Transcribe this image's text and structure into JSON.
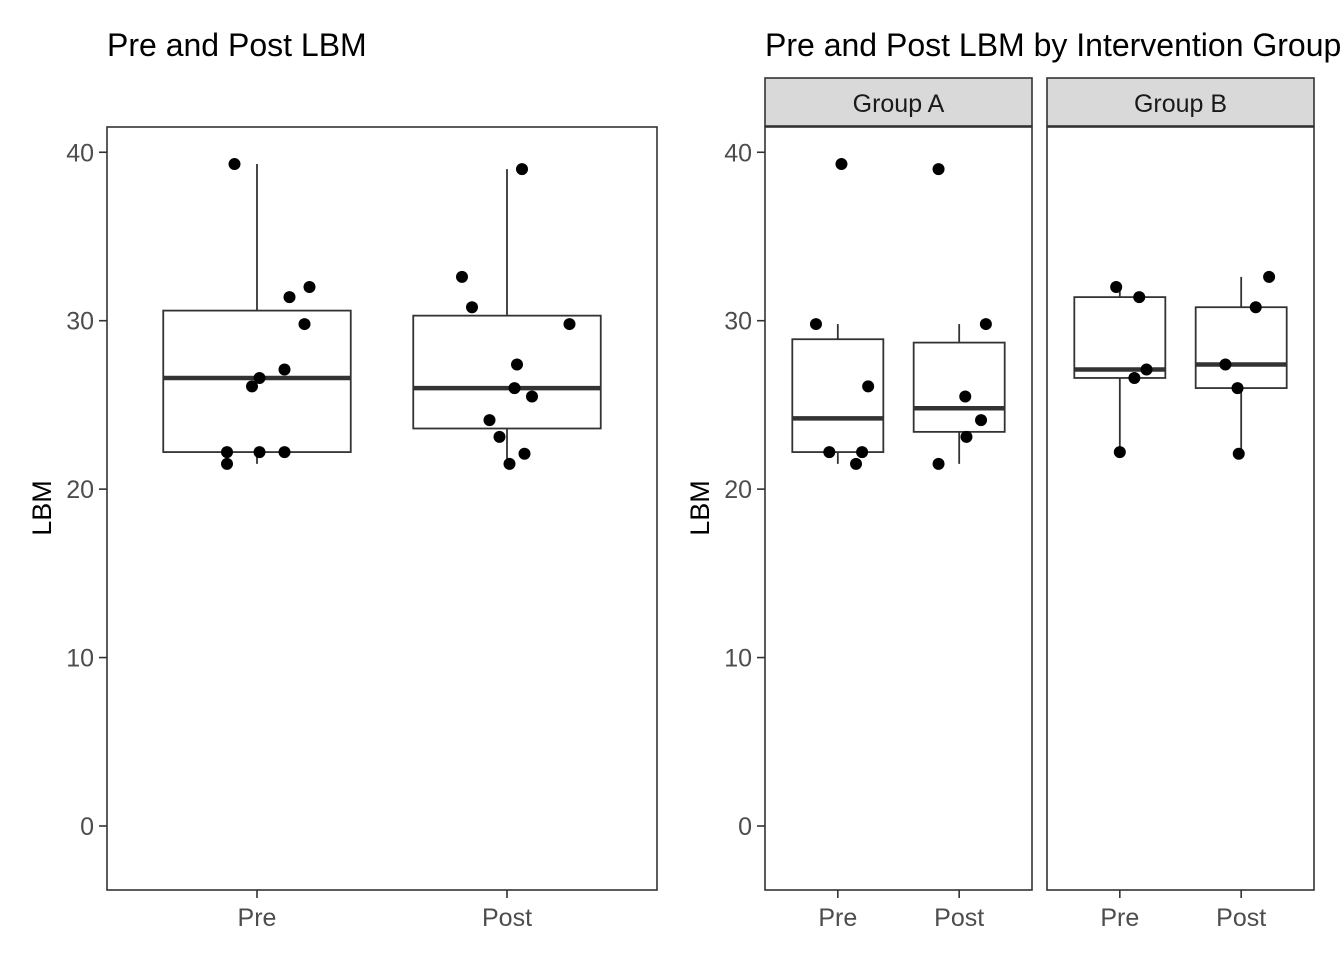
{
  "chart_data": [
    {
      "type": "boxplot",
      "title": "Pre and Post LBM",
      "xlabel": "",
      "ylabel": "LBM",
      "ylim": [
        -3.8,
        41.5
      ],
      "yticks": [
        0,
        10,
        20,
        30,
        40
      ],
      "categories": [
        "Pre",
        "Post"
      ],
      "boxes": [
        {
          "category": "Pre",
          "min": 21.5,
          "q1": 22.2,
          "median": 26.6,
          "q3": 30.6,
          "max": 39.3
        },
        {
          "category": "Post",
          "min": 21.5,
          "q1": 23.6,
          "median": 26.0,
          "q3": 30.3,
          "max": 39.0
        }
      ],
      "points": [
        {
          "category": "Pre",
          "jitter": -0.09,
          "value": 39.3
        },
        {
          "category": "Pre",
          "jitter": 0.21,
          "value": 32.0
        },
        {
          "category": "Pre",
          "jitter": 0.13,
          "value": 31.4
        },
        {
          "category": "Pre",
          "jitter": 0.19,
          "value": 29.8
        },
        {
          "category": "Pre",
          "jitter": 0.11,
          "value": 27.1
        },
        {
          "category": "Pre",
          "jitter": 0.01,
          "value": 26.6
        },
        {
          "category": "Pre",
          "jitter": -0.02,
          "value": 26.1
        },
        {
          "category": "Pre",
          "jitter": -0.12,
          "value": 22.2
        },
        {
          "category": "Pre",
          "jitter": 0.01,
          "value": 22.2
        },
        {
          "category": "Pre",
          "jitter": 0.11,
          "value": 22.2
        },
        {
          "category": "Pre",
          "jitter": -0.12,
          "value": 21.5
        },
        {
          "category": "Post",
          "jitter": 0.06,
          "value": 39.0
        },
        {
          "category": "Post",
          "jitter": -0.18,
          "value": 32.6
        },
        {
          "category": "Post",
          "jitter": -0.14,
          "value": 30.8
        },
        {
          "category": "Post",
          "jitter": 0.25,
          "value": 29.8
        },
        {
          "category": "Post",
          "jitter": 0.04,
          "value": 27.4
        },
        {
          "category": "Post",
          "jitter": 0.03,
          "value": 26.0
        },
        {
          "category": "Post",
          "jitter": 0.1,
          "value": 25.5
        },
        {
          "category": "Post",
          "jitter": -0.07,
          "value": 24.1
        },
        {
          "category": "Post",
          "jitter": -0.03,
          "value": 23.1
        },
        {
          "category": "Post",
          "jitter": 0.07,
          "value": 22.1
        },
        {
          "category": "Post",
          "jitter": 0.01,
          "value": 21.5
        }
      ]
    },
    {
      "type": "boxplot",
      "title": "Pre and Post LBM by Intervention Group",
      "xlabel": "",
      "ylabel": "LBM",
      "ylim": [
        -3.8,
        41.5
      ],
      "yticks": [
        0,
        10,
        20,
        30,
        40
      ],
      "categories": [
        "Pre",
        "Post"
      ],
      "facets": [
        {
          "label": "Group A",
          "boxes": [
            {
              "category": "Pre",
              "min": 21.5,
              "q1": 22.2,
              "median": 24.2,
              "q3": 28.9,
              "max": 29.8
            },
            {
              "category": "Post",
              "min": 21.5,
              "q1": 23.4,
              "median": 24.8,
              "q3": 28.7,
              "max": 29.8
            }
          ],
          "points": [
            {
              "category": "Pre",
              "jitter": 0.03,
              "value": 39.3
            },
            {
              "category": "Pre",
              "jitter": -0.18,
              "value": 29.8
            },
            {
              "category": "Pre",
              "jitter": 0.25,
              "value": 26.1
            },
            {
              "category": "Pre",
              "jitter": -0.07,
              "value": 22.2
            },
            {
              "category": "Pre",
              "jitter": 0.2,
              "value": 22.2
            },
            {
              "category": "Pre",
              "jitter": 0.15,
              "value": 21.5
            },
            {
              "category": "Post",
              "jitter": -0.17,
              "value": 39.0
            },
            {
              "category": "Post",
              "jitter": 0.22,
              "value": 29.8
            },
            {
              "category": "Post",
              "jitter": 0.05,
              "value": 25.5
            },
            {
              "category": "Post",
              "jitter": 0.18,
              "value": 24.1
            },
            {
              "category": "Post",
              "jitter": 0.06,
              "value": 23.1
            },
            {
              "category": "Post",
              "jitter": -0.17,
              "value": 21.5
            }
          ]
        },
        {
          "label": "Group B",
          "boxes": [
            {
              "category": "Pre",
              "min": 22.2,
              "q1": 26.6,
              "median": 27.1,
              "q3": 31.4,
              "max": 32.0
            },
            {
              "category": "Post",
              "min": 22.1,
              "q1": 26.0,
              "median": 27.4,
              "q3": 30.8,
              "max": 32.6
            }
          ],
          "points": [
            {
              "category": "Pre",
              "jitter": -0.03,
              "value": 32.0
            },
            {
              "category": "Pre",
              "jitter": 0.16,
              "value": 31.4
            },
            {
              "category": "Pre",
              "jitter": 0.22,
              "value": 27.1
            },
            {
              "category": "Pre",
              "jitter": 0.12,
              "value": 26.6
            },
            {
              "category": "Pre",
              "jitter": 0.0,
              "value": 22.2
            },
            {
              "category": "Post",
              "jitter": 0.23,
              "value": 32.6
            },
            {
              "category": "Post",
              "jitter": 0.12,
              "value": 30.8
            },
            {
              "category": "Post",
              "jitter": -0.13,
              "value": 27.4
            },
            {
              "category": "Post",
              "jitter": -0.03,
              "value": 26.0
            },
            {
              "category": "Post",
              "jitter": -0.02,
              "value": 22.1
            }
          ]
        }
      ]
    }
  ]
}
